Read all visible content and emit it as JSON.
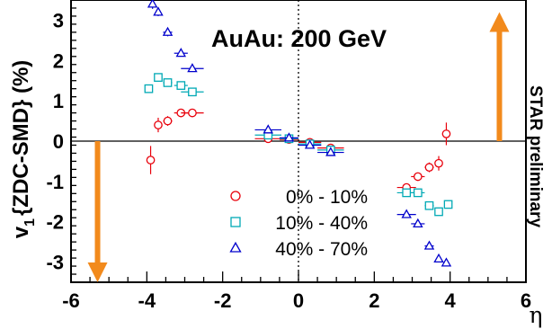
{
  "chart_data": {
    "type": "scatter",
    "title": "AuAu: 200 GeV",
    "xlabel": "η",
    "ylabel": "v₁{ZDC-SMD} (%)",
    "ylabel_main": "v",
    "ylabel_sub": "1",
    "ylabel_rest": "{ZDC-SMD} (%)",
    "watermark": "STAR preliminary",
    "xlim": [
      -6,
      6
    ],
    "ylim": [
      -3.5,
      3.5
    ],
    "xticks": [
      -6,
      -4,
      -2,
      0,
      2,
      4,
      6
    ],
    "yticks": [
      -3,
      -2,
      -1,
      0,
      1,
      2,
      3
    ],
    "grid": false,
    "legend_position": "bottom-center",
    "series": [
      {
        "name": "0% - 10%",
        "marker": "circle",
        "color": "#e8000b",
        "points": [
          {
            "x": -3.9,
            "y": -0.47,
            "xerr": 0.0,
            "yerr": 0.35
          },
          {
            "x": -3.7,
            "y": 0.4,
            "xerr": 0.05,
            "yerr": 0.18
          },
          {
            "x": -3.45,
            "y": 0.5,
            "xerr": 0.12,
            "yerr": 0.12
          },
          {
            "x": -3.1,
            "y": 0.7,
            "xerr": 0.18,
            "yerr": 0.1
          },
          {
            "x": -2.8,
            "y": 0.7,
            "xerr": 0.3,
            "yerr": 0.1
          },
          {
            "x": -0.8,
            "y": 0.06,
            "xerr": 0.35,
            "yerr": 0.05
          },
          {
            "x": -0.25,
            "y": 0.04,
            "xerr": 0.25,
            "yerr": 0.05
          },
          {
            "x": 0.3,
            "y": -0.03,
            "xerr": 0.3,
            "yerr": 0.05
          },
          {
            "x": 0.85,
            "y": -0.17,
            "xerr": 0.35,
            "yerr": 0.08
          },
          {
            "x": 2.85,
            "y": -1.15,
            "xerr": 0.25,
            "yerr": 0.08
          },
          {
            "x": 3.15,
            "y": -0.88,
            "xerr": 0.18,
            "yerr": 0.1
          },
          {
            "x": 3.45,
            "y": -0.65,
            "xerr": 0.12,
            "yerr": 0.12
          },
          {
            "x": 3.7,
            "y": -0.55,
            "xerr": 0.06,
            "yerr": 0.18
          },
          {
            "x": 3.9,
            "y": 0.18,
            "xerr": 0.0,
            "yerr": 0.28
          }
        ]
      },
      {
        "name": "10% - 40%",
        "marker": "square",
        "color": "#00a9b5",
        "points": [
          {
            "x": -3.95,
            "y": 1.3,
            "xerr": 0.0,
            "yerr": 0.1
          },
          {
            "x": -3.7,
            "y": 1.58,
            "xerr": 0.05,
            "yerr": 0.08
          },
          {
            "x": -3.45,
            "y": 1.45,
            "xerr": 0.12,
            "yerr": 0.08
          },
          {
            "x": -3.1,
            "y": 1.38,
            "xerr": 0.18,
            "yerr": 0.08
          },
          {
            "x": -2.8,
            "y": 1.22,
            "xerr": 0.3,
            "yerr": 0.08
          },
          {
            "x": -0.8,
            "y": 0.15,
            "xerr": 0.35,
            "yerr": 0.05
          },
          {
            "x": -0.25,
            "y": 0.06,
            "xerr": 0.25,
            "yerr": 0.04
          },
          {
            "x": 0.3,
            "y": -0.07,
            "xerr": 0.3,
            "yerr": 0.04
          },
          {
            "x": 0.85,
            "y": -0.22,
            "xerr": 0.35,
            "yerr": 0.05
          },
          {
            "x": 2.85,
            "y": -1.28,
            "xerr": 0.25,
            "yerr": 0.08
          },
          {
            "x": 3.15,
            "y": -1.28,
            "xerr": 0.18,
            "yerr": 0.08
          },
          {
            "x": 3.45,
            "y": -1.6,
            "xerr": 0.12,
            "yerr": 0.08
          },
          {
            "x": 3.7,
            "y": -1.75,
            "xerr": 0.06,
            "yerr": 0.08
          },
          {
            "x": 3.95,
            "y": -1.57,
            "xerr": 0.0,
            "yerr": 0.1
          }
        ]
      },
      {
        "name": "40% - 70%",
        "marker": "triangle",
        "color": "#0000cc",
        "points": [
          {
            "x": -3.85,
            "y": 3.4,
            "xerr": 0.0,
            "yerr": 0.12
          },
          {
            "x": -3.7,
            "y": 3.2,
            "xerr": 0.05,
            "yerr": 0.1
          },
          {
            "x": -3.45,
            "y": 2.7,
            "xerr": 0.12,
            "yerr": 0.1
          },
          {
            "x": -3.1,
            "y": 2.18,
            "xerr": 0.18,
            "yerr": 0.08
          },
          {
            "x": -2.8,
            "y": 1.8,
            "xerr": 0.3,
            "yerr": 0.08
          },
          {
            "x": -0.8,
            "y": 0.28,
            "xerr": 0.35,
            "yerr": 0.05
          },
          {
            "x": -0.25,
            "y": 0.08,
            "xerr": 0.25,
            "yerr": 0.04
          },
          {
            "x": 0.3,
            "y": -0.1,
            "xerr": 0.3,
            "yerr": 0.04
          },
          {
            "x": 0.85,
            "y": -0.28,
            "xerr": 0.35,
            "yerr": 0.05
          },
          {
            "x": 2.85,
            "y": -1.82,
            "xerr": 0.25,
            "yerr": 0.08
          },
          {
            "x": 3.15,
            "y": -2.05,
            "xerr": 0.18,
            "yerr": 0.08
          },
          {
            "x": 3.45,
            "y": -2.6,
            "xerr": 0.12,
            "yerr": 0.08
          },
          {
            "x": 3.7,
            "y": -2.92,
            "xerr": 0.06,
            "yerr": 0.08
          },
          {
            "x": 3.9,
            "y": -3.02,
            "xerr": 0.0,
            "yerr": 0.08
          }
        ]
      }
    ],
    "annotations": {
      "arrow_color": "#f28a1c",
      "arrows": [
        {
          "x": -5.3,
          "y_from": 0.0,
          "y_to": -3.5,
          "direction": "down"
        },
        {
          "x": 5.3,
          "y_from": 0.0,
          "y_to": 3.2,
          "direction": "up"
        }
      ],
      "zero_line": "horizontal solid at y=0",
      "center_line": "vertical dotted at x=0"
    }
  }
}
